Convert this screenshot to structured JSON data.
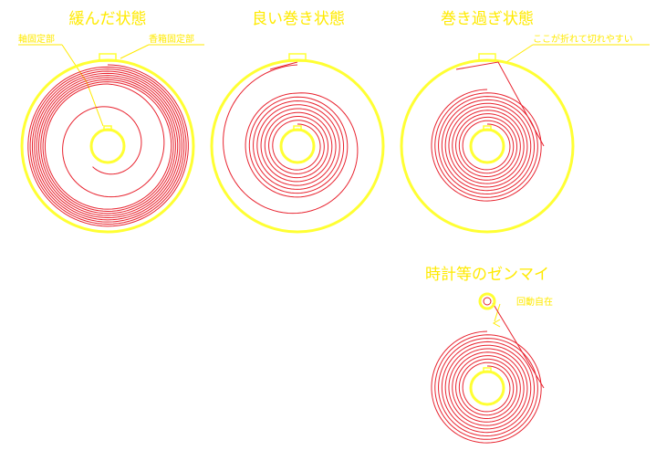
{
  "diagram": {
    "colors": {
      "case": "#ffff33",
      "spring": "#e8232f",
      "label": "#ffea00",
      "background": "#ffffff"
    },
    "panels": [
      {
        "id": "loose",
        "title": "緩んだ状態"
      },
      {
        "id": "good",
        "title": "良い巻き状態"
      },
      {
        "id": "over",
        "title": "巻き過ぎ状態"
      }
    ],
    "annotations": {
      "axis_fixed": "軸固定部",
      "case_fixed": "香箱固定部",
      "breaks_easily": "ここが折れて切れやすい"
    },
    "clock": {
      "title": "時計等のゼンマイ",
      "free_rotation": "回動自在"
    }
  }
}
